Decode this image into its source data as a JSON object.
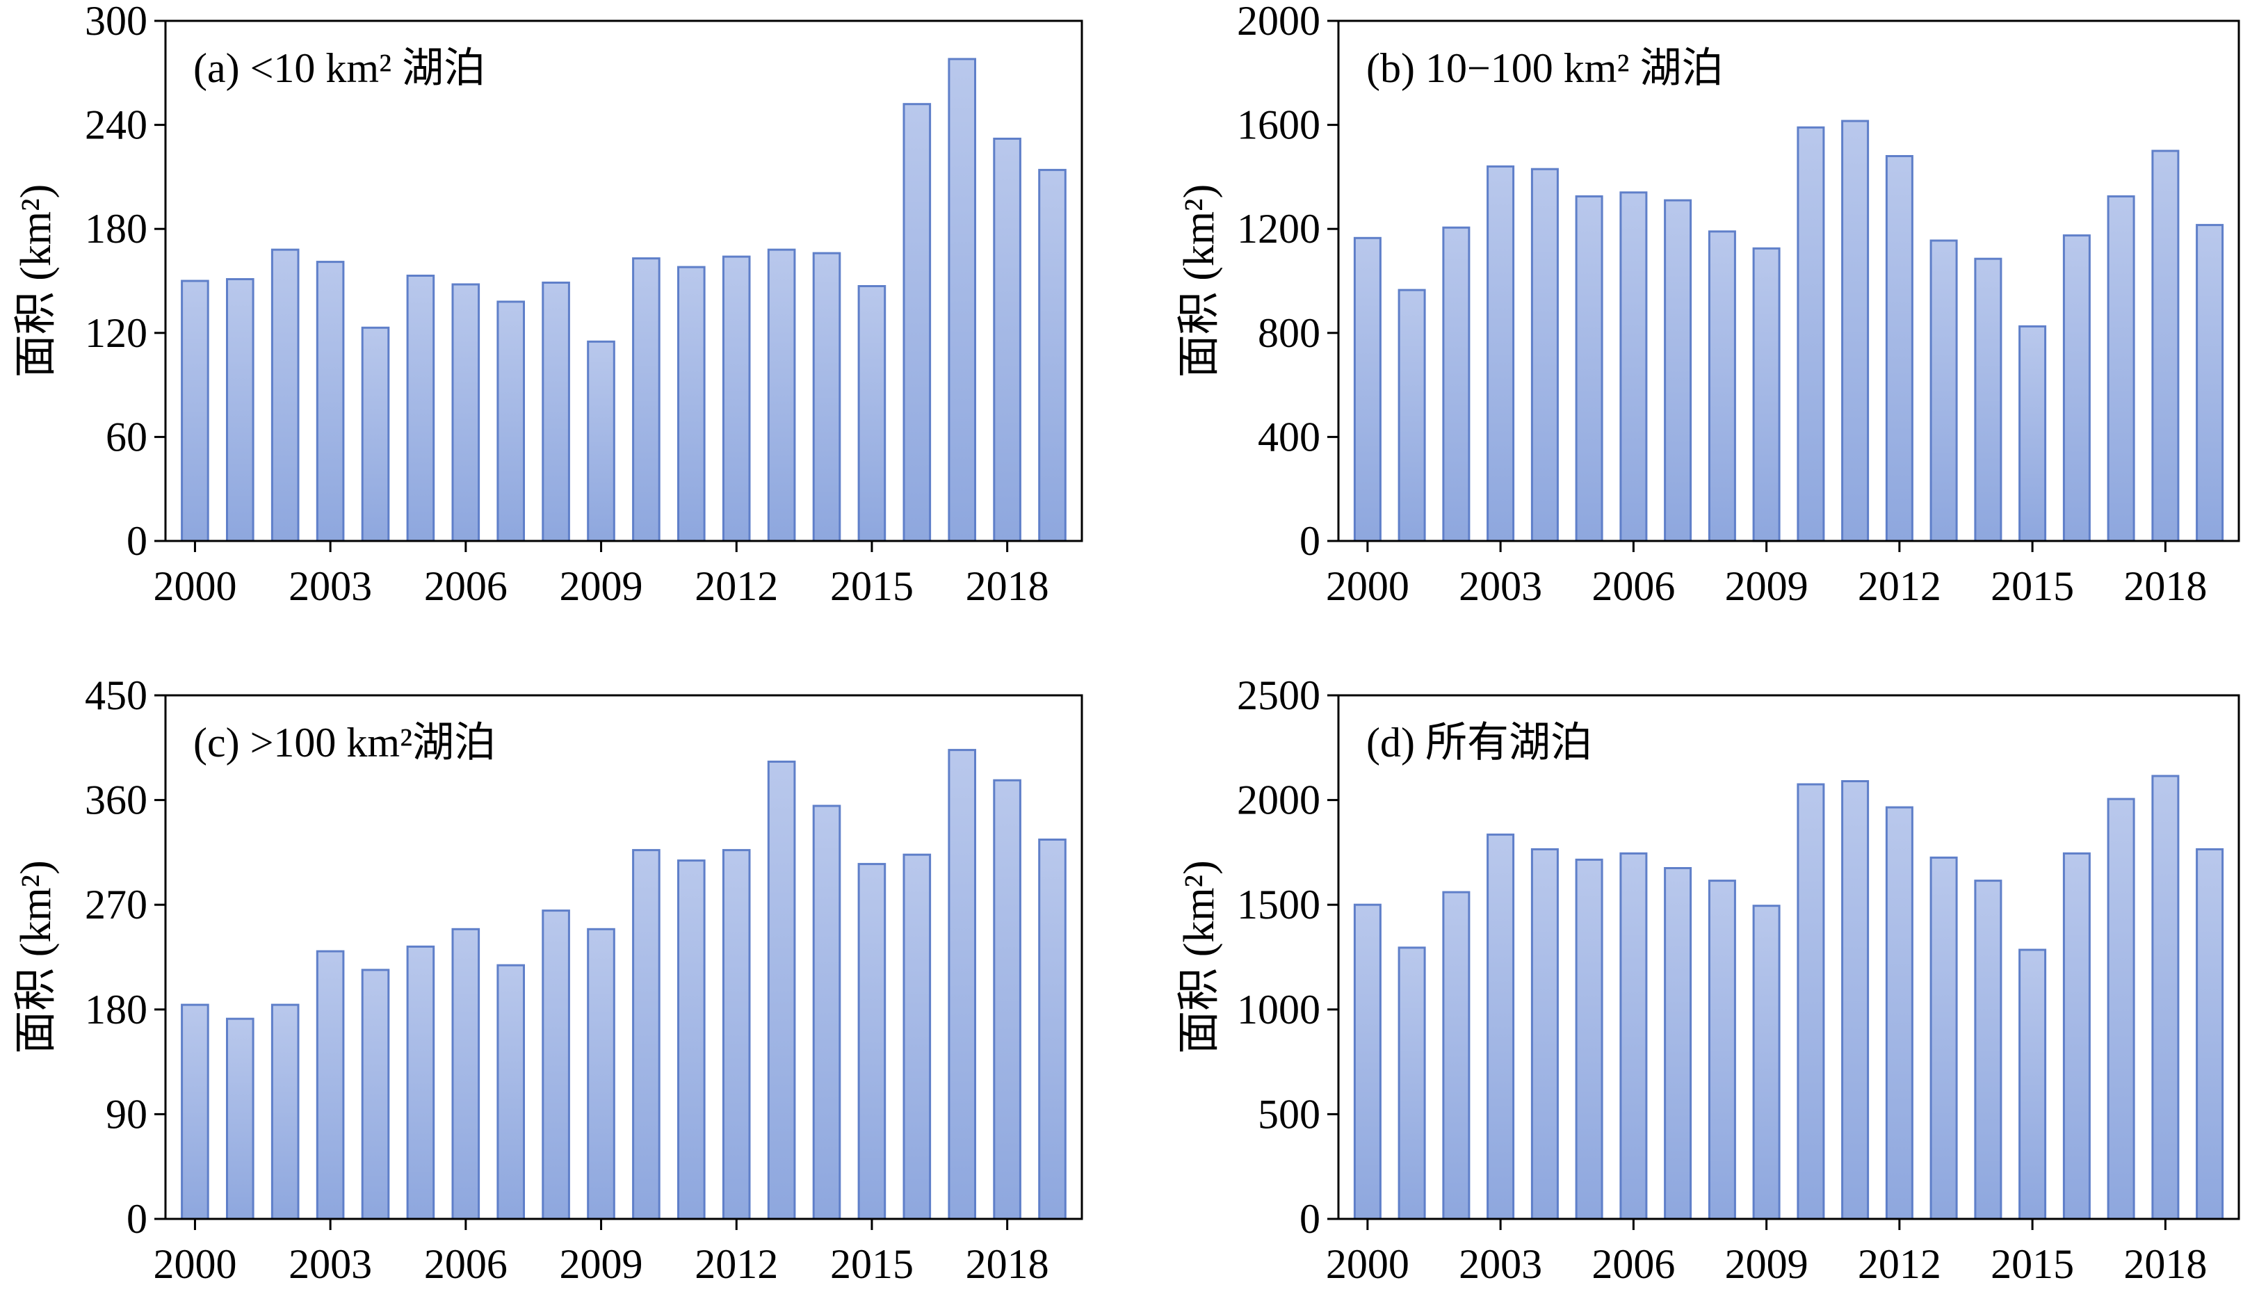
{
  "figure": {
    "bar_fill_top": "#b9c8ec",
    "bar_fill_bottom": "#8ea7de",
    "bar_stroke": "#5f7fc9",
    "frame_color": "#000000",
    "background": "#ffffff"
  },
  "chart_data": [
    {
      "type": "bar",
      "title": "(a) <10 km² 湖泊",
      "ylabel": "面积 (km²)",
      "xlabel": "",
      "ylim": [
        0,
        300
      ],
      "yticks": [
        "0",
        "60",
        "120",
        "180",
        "240",
        "300"
      ],
      "x_tick_labels": [
        "2000",
        "2003",
        "2006",
        "2009",
        "2012",
        "2015",
        "2018"
      ],
      "categories": [
        "2000",
        "2001",
        "2002",
        "2003",
        "2004",
        "2005",
        "2006",
        "2007",
        "2008",
        "2009",
        "2010",
        "2011",
        "2012",
        "2013",
        "2014",
        "2015",
        "2016",
        "2017",
        "2018",
        "2019"
      ],
      "values": [
        150,
        151,
        168,
        161,
        123,
        153,
        148,
        138,
        149,
        115,
        163,
        158,
        164,
        168,
        166,
        147,
        252,
        278,
        232,
        214
      ],
      "grid": false,
      "legend": "none"
    },
    {
      "type": "bar",
      "title": "(b) 10−100 km² 湖泊",
      "ylabel": "面积 (km²)",
      "xlabel": "",
      "ylim": [
        0,
        2000
      ],
      "yticks": [
        "0",
        "400",
        "800",
        "1200",
        "1600",
        "2000"
      ],
      "x_tick_labels": [
        "2000",
        "2003",
        "2006",
        "2009",
        "2012",
        "2015",
        "2018"
      ],
      "categories": [
        "2000",
        "2001",
        "2002",
        "2003",
        "2004",
        "2005",
        "2006",
        "2007",
        "2008",
        "2009",
        "2010",
        "2011",
        "2012",
        "2013",
        "2014",
        "2015",
        "2016",
        "2017",
        "2018",
        "2019"
      ],
      "values": [
        1165,
        965,
        1205,
        1440,
        1430,
        1325,
        1340,
        1310,
        1190,
        1125,
        1590,
        1615,
        1480,
        1155,
        1085,
        825,
        1175,
        1325,
        1500,
        1215
      ],
      "grid": false,
      "legend": "none"
    },
    {
      "type": "bar",
      "title": "(c) >100 km²湖泊",
      "ylabel": "面积 (km²)",
      "xlabel": "",
      "ylim": [
        0,
        450
      ],
      "yticks": [
        "0",
        "90",
        "180",
        "270",
        "360",
        "450"
      ],
      "x_tick_labels": [
        "2000",
        "2003",
        "2006",
        "2009",
        "2012",
        "2015",
        "2018"
      ],
      "categories": [
        "2000",
        "2001",
        "2002",
        "2003",
        "2004",
        "2005",
        "2006",
        "2007",
        "2008",
        "2009",
        "2010",
        "2011",
        "2012",
        "2013",
        "2014",
        "2015",
        "2016",
        "2017",
        "2018",
        "2019"
      ],
      "values": [
        184,
        172,
        184,
        230,
        214,
        234,
        249,
        218,
        265,
        249,
        317,
        308,
        317,
        393,
        355,
        305,
        313,
        403,
        377,
        326
      ],
      "grid": false,
      "legend": "none"
    },
    {
      "type": "bar",
      "title": "(d)  所有湖泊",
      "ylabel": "面积 (km²)",
      "xlabel": "",
      "ylim": [
        0,
        2500
      ],
      "yticks": [
        "0",
        "500",
        "1000",
        "1500",
        "2000",
        "2500"
      ],
      "x_tick_labels": [
        "2000",
        "2003",
        "2006",
        "2009",
        "2012",
        "2015",
        "2018"
      ],
      "categories": [
        "2000",
        "2001",
        "2002",
        "2003",
        "2004",
        "2005",
        "2006",
        "2007",
        "2008",
        "2009",
        "2010",
        "2011",
        "2012",
        "2013",
        "2014",
        "2015",
        "2016",
        "2017",
        "2018",
        "2019"
      ],
      "values": [
        1500,
        1295,
        1560,
        1835,
        1765,
        1715,
        1745,
        1675,
        1615,
        1495,
        2075,
        2090,
        1965,
        1725,
        1615,
        1285,
        1745,
        2005,
        2115,
        1765
      ],
      "grid": false,
      "legend": "none"
    }
  ]
}
